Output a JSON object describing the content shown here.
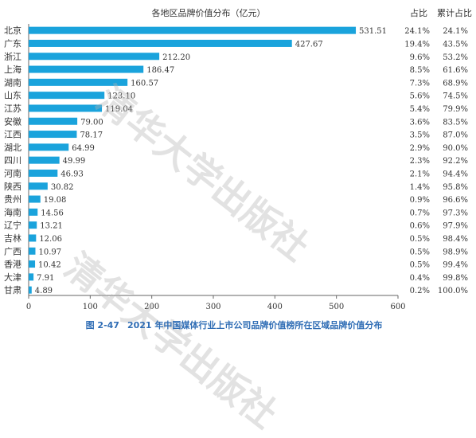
{
  "chart_data": {
    "type": "bar",
    "orientation": "horizontal",
    "title": "各地区品牌价值分布（亿元）",
    "col_share_header": "占比",
    "col_cum_header": "累计占比",
    "categories": [
      "北京",
      "广东",
      "浙江",
      "上海",
      "湖南",
      "山东",
      "江苏",
      "安徽",
      "江西",
      "湖北",
      "四川",
      "河南",
      "陕西",
      "贵州",
      "海南",
      "辽宁",
      "吉林",
      "广西",
      "香港",
      "大津",
      "甘肃"
    ],
    "values": [
      531.51,
      427.67,
      212.2,
      186.47,
      160.57,
      123.1,
      119.04,
      79.0,
      78.17,
      64.99,
      49.99,
      46.93,
      30.82,
      19.08,
      14.56,
      13.21,
      12.06,
      10.97,
      10.42,
      7.91,
      4.89
    ],
    "value_labels": [
      "531.51",
      "427.67",
      "212.20",
      "186.47",
      "160.57",
      "123.10",
      "119.04",
      "79.00",
      "78.17",
      "64.99",
      "49.99",
      "46.93",
      "30.82",
      "19.08",
      "14.56",
      "13.21",
      "12.06",
      "10.97",
      "10.42",
      "7.91",
      "4.89"
    ],
    "share": [
      "24.1%",
      "19.4%",
      "9.6%",
      "8.5%",
      "7.3%",
      "5.6%",
      "5.4%",
      "3.6%",
      "3.5%",
      "2.9%",
      "2.3%",
      "2.1%",
      "1.4%",
      "0.9%",
      "0.7%",
      "0.6%",
      "0.5%",
      "0.5%",
      "0.5%",
      "0.4%",
      "0.2%"
    ],
    "cumulative_share": [
      "24.1%",
      "43.5%",
      "53.2%",
      "61.6%",
      "68.9%",
      "74.5%",
      "79.9%",
      "83.5%",
      "87.0%",
      "90.0%",
      "92.2%",
      "94.4%",
      "95.8%",
      "96.6%",
      "97.3%",
      "97.9%",
      "98.4%",
      "98.9%",
      "99.4%",
      "99.8%",
      "100.0%"
    ],
    "xlim": [
      0,
      600
    ],
    "x_ticks": [
      "0",
      "100",
      "200",
      "300",
      "400",
      "500",
      "600"
    ],
    "grid": false,
    "bar_color": "#1aa3dc"
  },
  "caption": {
    "figure_no": "图 2-47",
    "text": "2021 年中国媒体行业上市公司品牌价值榜所在区域品牌价值分布"
  },
  "watermark": "清华大学出版社"
}
